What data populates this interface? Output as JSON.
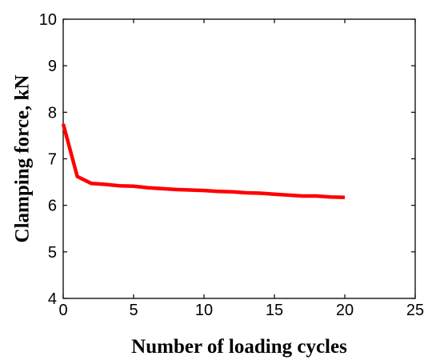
{
  "chart_data": {
    "type": "line",
    "xlabel": "Number of loading cycles",
    "ylabel": "Clamping force, kN",
    "xlim": [
      0,
      25
    ],
    "ylim": [
      4,
      10
    ],
    "xticks": [
      0,
      5,
      10,
      15,
      20,
      25
    ],
    "yticks": [
      4,
      5,
      6,
      7,
      8,
      9,
      10
    ],
    "xtick_labels": [
      "0",
      "5",
      "10",
      "15",
      "20",
      "25"
    ],
    "ytick_labels": [
      "4",
      "5",
      "6",
      "7",
      "8",
      "9",
      "10"
    ],
    "grid": false,
    "series": [
      {
        "color": "#ff0000",
        "x": [
          0,
          1,
          2,
          3,
          4,
          5,
          6,
          7,
          8,
          9,
          10,
          11,
          12,
          13,
          14,
          15,
          16,
          17,
          18,
          19,
          20
        ],
        "y": [
          7.75,
          6.62,
          6.47,
          6.45,
          6.42,
          6.41,
          6.38,
          6.36,
          6.34,
          6.33,
          6.32,
          6.3,
          6.29,
          6.27,
          6.26,
          6.24,
          6.22,
          6.2,
          6.2,
          6.18,
          6.17
        ]
      }
    ]
  }
}
